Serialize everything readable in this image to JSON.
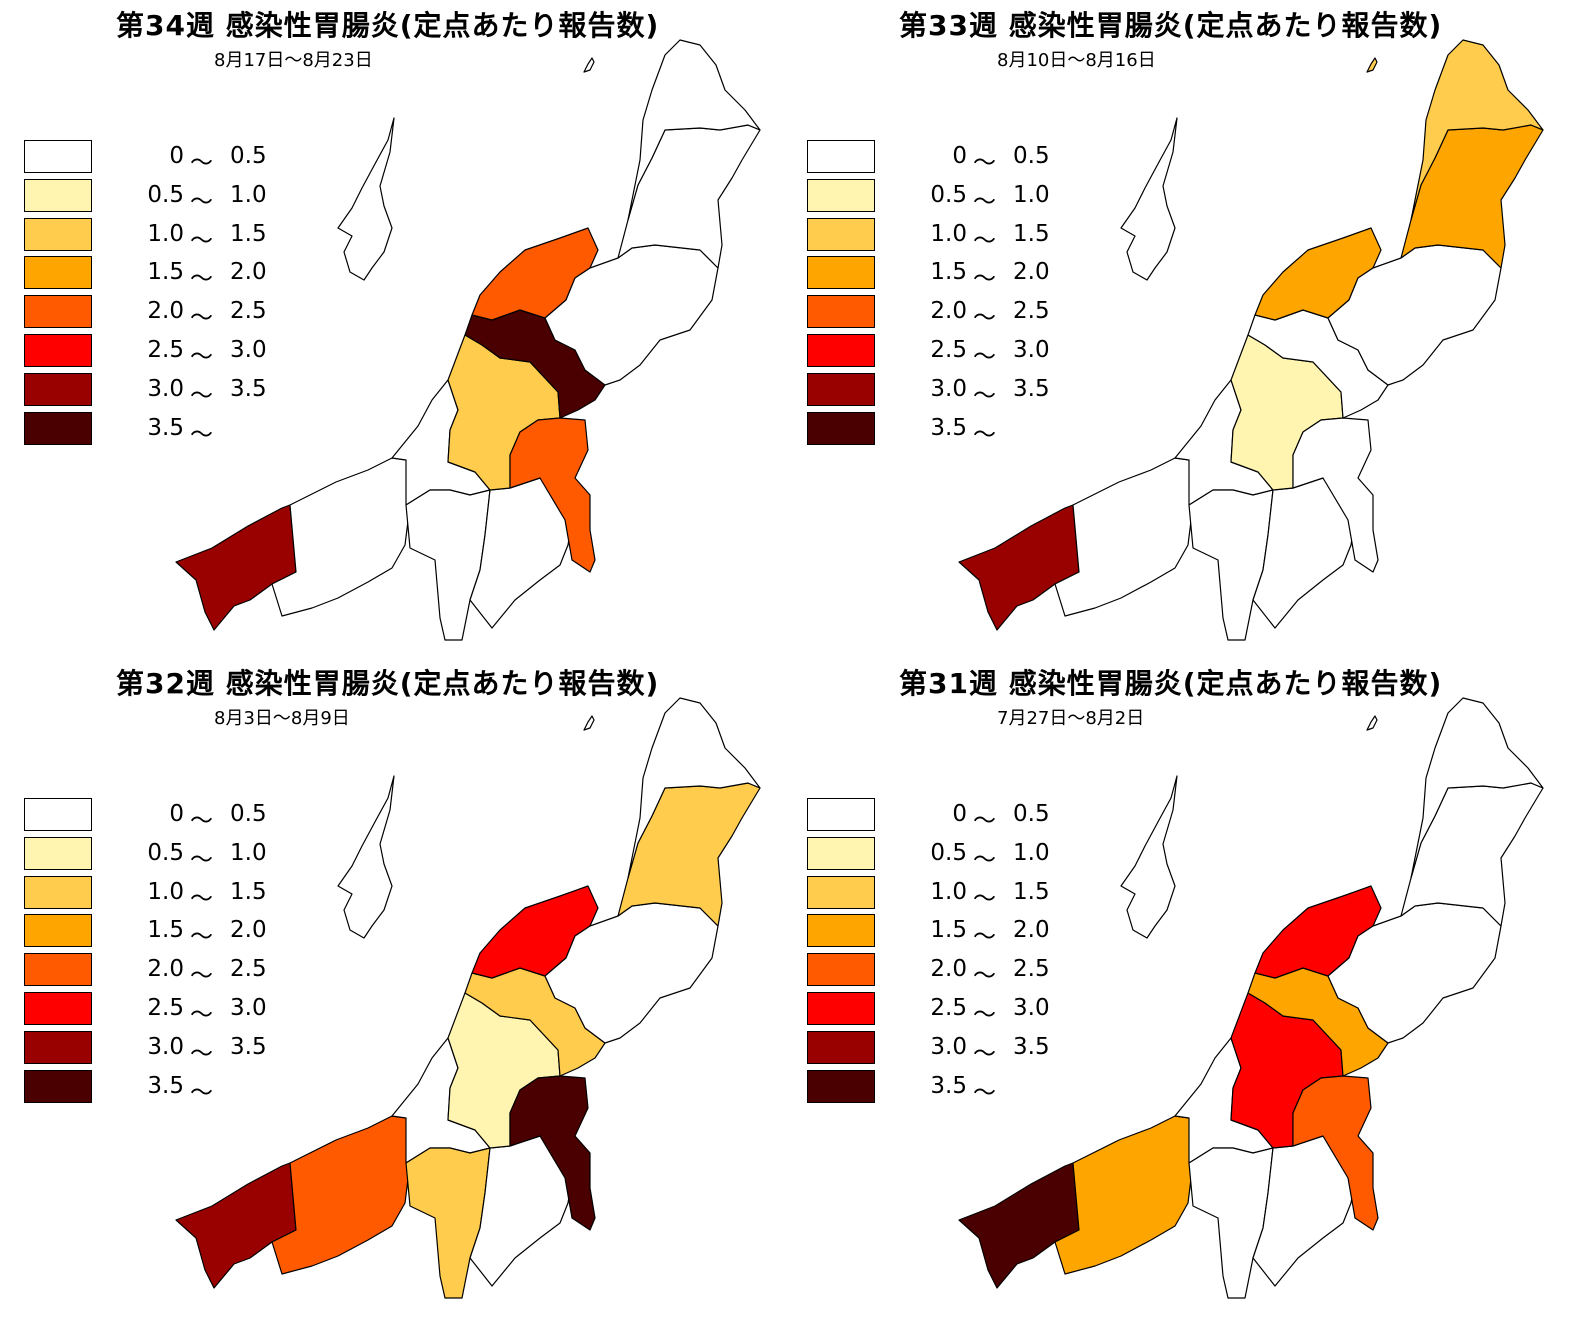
{
  "legend": [
    {
      "lo": "0",
      "hi": "0.5",
      "color": "#ffffff"
    },
    {
      "lo": "0.5",
      "hi": "1.0",
      "color": "#fff5b0"
    },
    {
      "lo": "1.0",
      "hi": "1.5",
      "color": "#ffcc4d"
    },
    {
      "lo": "1.5",
      "hi": "2.0",
      "color": "#ffa500"
    },
    {
      "lo": "2.0",
      "hi": "2.5",
      "color": "#ff5a00"
    },
    {
      "lo": "2.5",
      "hi": "3.0",
      "color": "#ff0000"
    },
    {
      "lo": "3.0",
      "hi": "3.5",
      "color": "#990000"
    },
    {
      "lo": "3.5",
      "hi": "",
      "color": "#4a0000"
    }
  ],
  "tilde": "〜",
  "panels": [
    {
      "title": "第34週 感染性胃腸炎(定点あたり報告数)",
      "subtitle": "8月17日〜8月23日",
      "levels": {
        "joetsu": 6,
        "itoigawa": 0,
        "kashiwazaki": 0,
        "uonuma": 0,
        "minamiuonuma": 0,
        "nagaoka": 2,
        "sanjo": 7,
        "niigata": 4,
        "niitsu": 0,
        "shibata": 0,
        "murakami": 0,
        "sado": 0,
        "tokamachi": 4
      }
    },
    {
      "title": "第33週 感染性胃腸炎(定点あたり報告数)",
      "subtitle": "8月10日〜8月16日",
      "levels": {
        "joetsu": 6,
        "itoigawa": 0,
        "kashiwazaki": 0,
        "uonuma": 0,
        "minamiuonuma": 0,
        "nagaoka": 1,
        "sanjo": 0,
        "niigata": 3,
        "niitsu": 0,
        "shibata": 3,
        "murakami": 2,
        "sado": 0,
        "tokamachi": 0
      }
    },
    {
      "title": "第32週 感染性胃腸炎(定点あたり報告数)",
      "subtitle": "8月3日〜8月9日",
      "levels": {
        "joetsu": 6,
        "itoigawa": 4,
        "kashiwazaki": 0,
        "uonuma": 2,
        "minamiuonuma": 0,
        "nagaoka": 1,
        "sanjo": 2,
        "niigata": 5,
        "niitsu": 0,
        "shibata": 2,
        "murakami": 0,
        "sado": 0,
        "tokamachi": 7
      }
    },
    {
      "title": "第31週 感染性胃腸炎(定点あたり報告数)",
      "subtitle": "7月27日〜8月2日",
      "levels": {
        "joetsu": 7,
        "itoigawa": 3,
        "kashiwazaki": 0,
        "uonuma": 0,
        "minamiuonuma": 0,
        "nagaoka": 5,
        "sanjo": 3,
        "niigata": 5,
        "niitsu": 0,
        "shibata": 0,
        "murakami": 0,
        "sado": 0,
        "tokamachi": 4
      }
    }
  ]
}
